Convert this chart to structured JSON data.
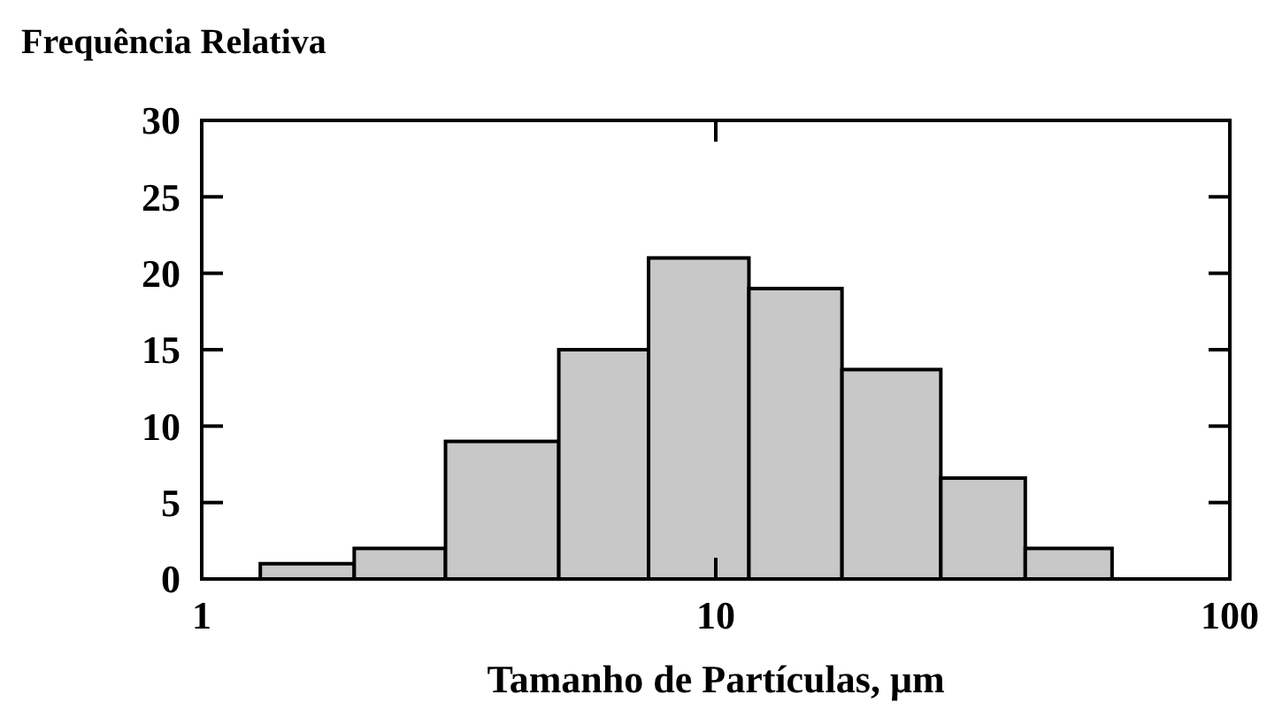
{
  "chart_data": {
    "type": "histogram",
    "title": "Frequência Relativa",
    "xlabel": "Tamanho de Partículas, μm",
    "bins": [
      1.3,
      1.98,
      2.98,
      4.95,
      7.4,
      11.6,
      17.6,
      27.4,
      40,
      59
    ],
    "values": [
      1,
      2,
      9,
      15,
      21,
      19,
      13.7,
      6.6,
      2
    ],
    "color": "#c8c8c8",
    "log": "x",
    "xlim": [
      1,
      100
    ],
    "xticks": [
      1,
      10,
      100
    ],
    "ylim": [
      0,
      30
    ],
    "yticks": [
      0,
      5,
      10,
      15,
      20,
      25,
      30
    ],
    "grid": false
  }
}
